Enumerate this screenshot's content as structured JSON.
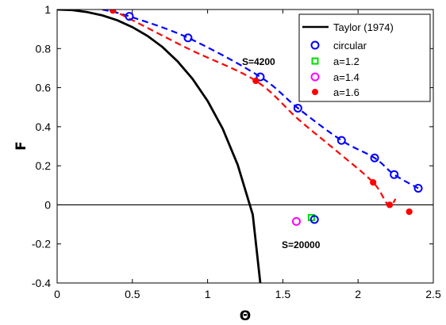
{
  "chart_data": {
    "type": "line",
    "xlabel": "Θ",
    "ylabel": "F",
    "xlim": [
      0,
      2.5
    ],
    "ylim": [
      -0.4,
      1
    ],
    "xticks": [
      0,
      0.5,
      1,
      1.5,
      2,
      2.5
    ],
    "xtick_labels": [
      "0",
      "0.5",
      "1",
      "1.5",
      "2",
      "2.5"
    ],
    "yticks": [
      -0.4,
      -0.2,
      0,
      0.2,
      0.4,
      0.6,
      0.8,
      1
    ],
    "ytick_labels": [
      "-0.4",
      "-0.2",
      "0",
      "0.2",
      "0.4",
      "0.6",
      "0.8",
      "1"
    ],
    "grid": false,
    "legend_position": "top-right",
    "zero_line": true,
    "series": [
      {
        "name": "Taylor (1974)",
        "style": "solid-line",
        "color": "#000000",
        "x": [
          0,
          0.1,
          0.2,
          0.3,
          0.4,
          0.5,
          0.6,
          0.7,
          0.8,
          0.9,
          1.0,
          1.1,
          1.2,
          1.3,
          1.35
        ],
        "y": [
          1.0,
          0.997,
          0.987,
          0.97,
          0.945,
          0.91,
          0.865,
          0.808,
          0.735,
          0.645,
          0.532,
          0.39,
          0.205,
          -0.05,
          -0.4
        ]
      },
      {
        "name": "circular",
        "style": "open-circle",
        "color": "#0000ff",
        "x": [
          0.48,
          0.87,
          1.35,
          1.6,
          1.89,
          2.11,
          2.24,
          2.4
        ],
        "y": [
          0.965,
          0.855,
          0.655,
          0.495,
          0.33,
          0.24,
          0.155,
          0.085
        ]
      },
      {
        "name": "a=1.2",
        "style": "open-square",
        "color": "#00dd00",
        "x": [
          1.69
        ],
        "y": [
          -0.065
        ]
      },
      {
        "name": "a=1.4",
        "style": "open-circle",
        "color": "#ff00ff",
        "x": [
          1.59
        ],
        "y": [
          -0.085
        ]
      },
      {
        "name": "a=1.6",
        "style": "filled-circle",
        "color": "#ff0000",
        "x": [
          0.37,
          1.32,
          2.1,
          2.21,
          2.34
        ],
        "y": [
          0.995,
          0.635,
          0.115,
          0.0,
          -0.035
        ]
      }
    ],
    "extra_marks": [
      {
        "style": "open-circle",
        "color": "#0000ff",
        "x": 1.71,
        "y": -0.075
      }
    ],
    "fit_curves": [
      {
        "color": "#0000ff",
        "style": "dashed",
        "x": [
          0.3,
          0.48,
          0.87,
          1.35,
          1.6,
          1.89,
          2.11,
          2.24,
          2.4
        ],
        "y": [
          1.0,
          0.965,
          0.855,
          0.655,
          0.495,
          0.33,
          0.24,
          0.155,
          0.085
        ]
      },
      {
        "color": "#ff0000",
        "style": "dashed",
        "x": [
          0.3,
          0.37,
          0.87,
          1.32,
          1.6,
          1.85,
          2.1,
          2.2,
          2.25
        ],
        "y": [
          1.0,
          0.995,
          0.8,
          0.635,
          0.44,
          0.28,
          0.115,
          0.0,
          0.03
        ]
      }
    ],
    "annotations": [
      {
        "text": "S=4200",
        "x": 1.23,
        "y": 0.71
      },
      {
        "text": "S=20000",
        "x": 1.5,
        "y": -0.28
      }
    ]
  }
}
